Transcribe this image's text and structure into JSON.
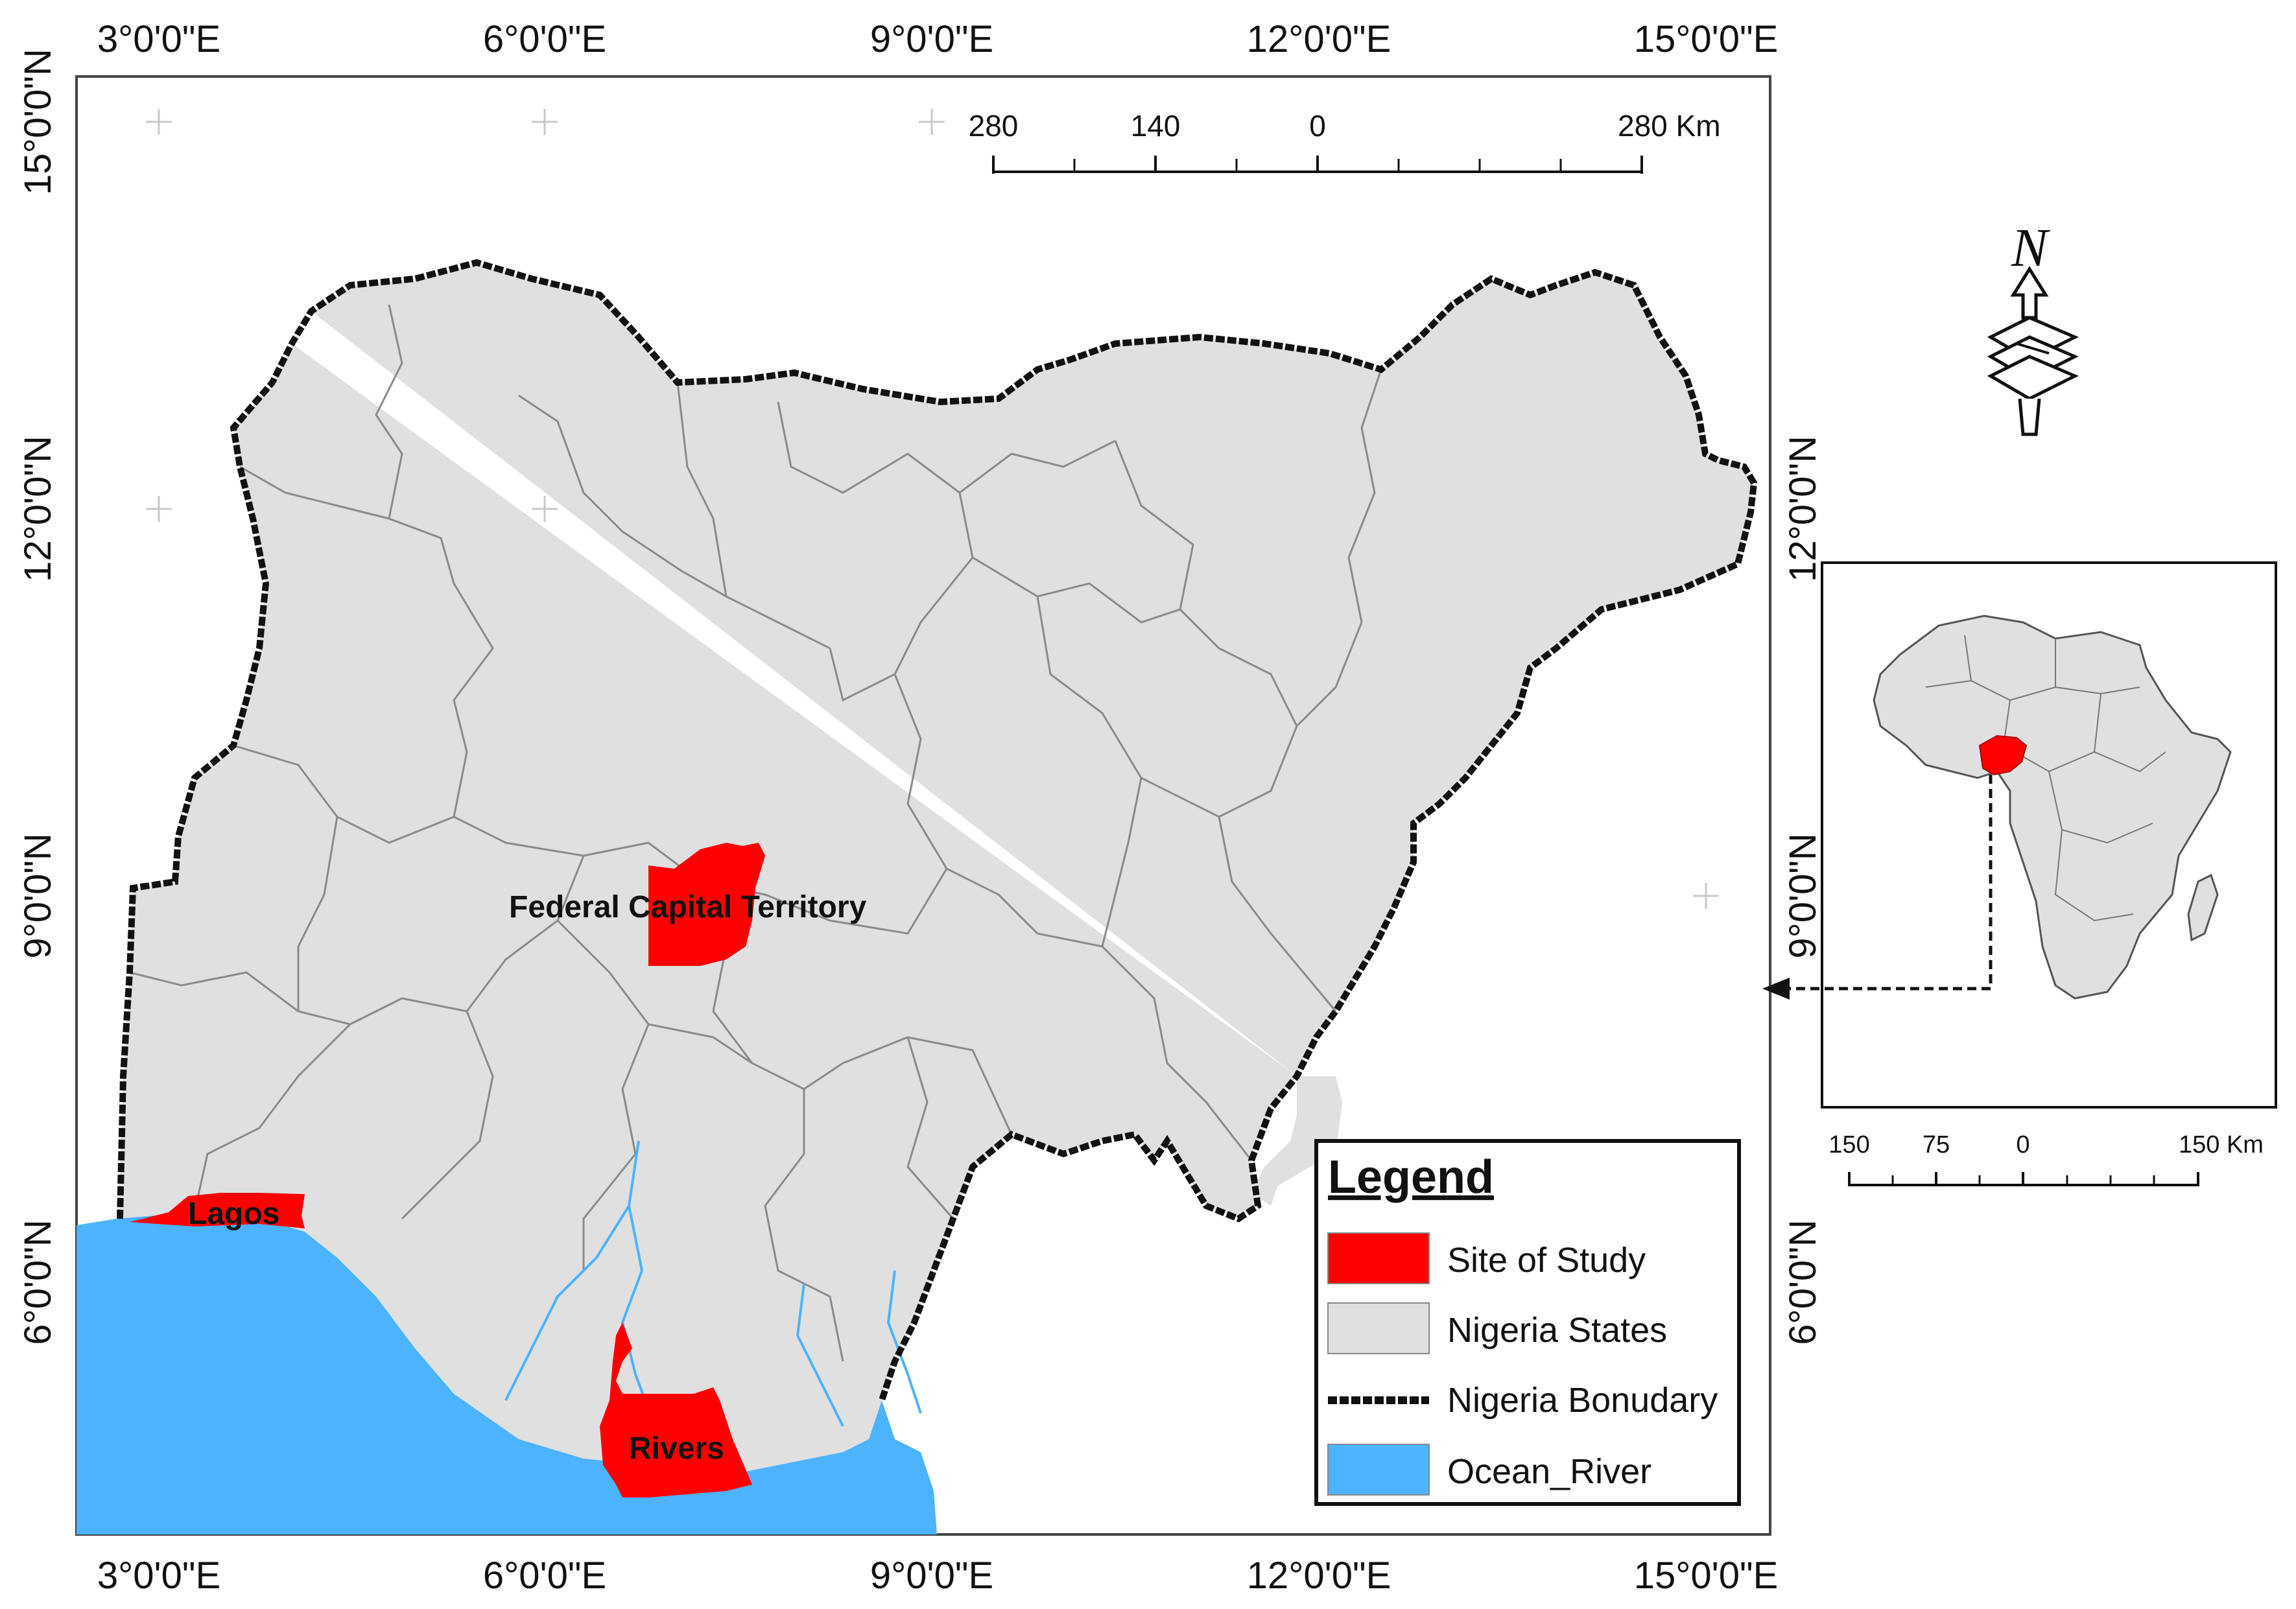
{
  "map": {
    "top_longitude_labels": [
      "3°0'0\"E",
      "6°0'0\"E",
      "9°0'0\"E",
      "12°0'0\"E",
      "15°0'0\"E"
    ],
    "bottom_longitude_labels": [
      "3°0'0\"E",
      "6°0'0\"E",
      "9°0'0\"E",
      "12°0'0\"E",
      "15°0'0\"E"
    ],
    "left_latitude_labels": [
      "15°0'0\"N",
      "12°0'0\"N",
      "9°0'0\"N",
      "6°0'0\"N"
    ],
    "right_latitude_labels": [
      "12°0'0\"N",
      "9°0'0\"N",
      "6°0'0\"N"
    ],
    "places": {
      "fct": "Federal Capital Territory",
      "lagos": "Lagos",
      "rivers": "Rivers"
    },
    "colors": {
      "site": "#ff0000",
      "states": "#e0e0e0",
      "boundary": "#111111",
      "ocean": "#4db3ff"
    }
  },
  "scale_bar": {
    "labels": [
      "280",
      "140",
      "0",
      "280 Km"
    ]
  },
  "inset": {
    "scale_labels": [
      "150",
      "75",
      "0",
      "150 Km"
    ]
  },
  "north_arrow": {
    "label": "N",
    "icon": "north-arrow-icon"
  },
  "legend": {
    "title": "Legend",
    "items": [
      {
        "label": "Site of Study",
        "swatch": "site"
      },
      {
        "label": "Nigeria States",
        "swatch": "states"
      },
      {
        "label": "Nigeria Bonudary",
        "swatch": "boundary"
      },
      {
        "label": "Ocean_River",
        "swatch": "ocean"
      }
    ]
  }
}
